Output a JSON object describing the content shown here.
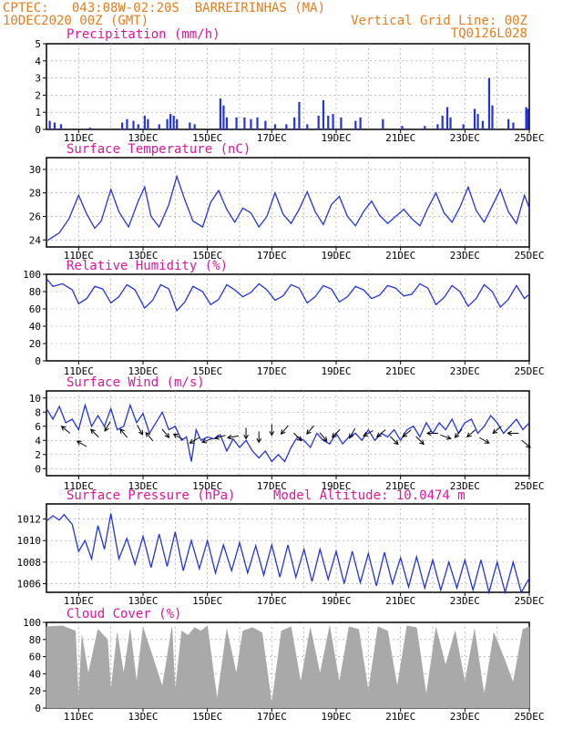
{
  "header": {
    "line1_left": "CPTEC:   043:08W-02:20S  BARREIRINHAS (MA)",
    "line2_left": "10DEC2020 00Z (GMT)",
    "line1_right": "Vertical Grid Line: 00Z",
    "line2_right": "TQ0126L028"
  },
  "colors": {
    "header": "#e87d1e",
    "title": "#e0159a",
    "series": "#2233e6",
    "cloud": "#a9a9a9",
    "grid": "#999999"
  },
  "x_axis": {
    "start": "10DEC2020 00Z",
    "end": "25DEC2020 00Z",
    "ticks": [
      "11DEC",
      "13DEC",
      "15DEC",
      "17DEC",
      "19DEC",
      "21DEC",
      "23DEC",
      "25DEC"
    ]
  },
  "chart_data": [
    {
      "id": "precip",
      "type": "bar",
      "title": "Precipitation (mm/h)",
      "ylim": [
        0,
        5
      ],
      "yticks": [
        "0",
        "1",
        "2",
        "3",
        "4",
        "5"
      ],
      "series_desc": "hourly bars",
      "events": [
        {
          "day": 10.1,
          "value": 0.5
        },
        {
          "day": 10.25,
          "value": 0.4
        },
        {
          "day": 10.45,
          "value": 0.3
        },
        {
          "day": 11.35,
          "value": 0.1
        },
        {
          "day": 12.35,
          "value": 0.4
        },
        {
          "day": 12.5,
          "value": 0.6
        },
        {
          "day": 12.7,
          "value": 0.5
        },
        {
          "day": 12.85,
          "value": 0.3
        },
        {
          "day": 13.05,
          "value": 0.8
        },
        {
          "day": 13.15,
          "value": 0.6
        },
        {
          "day": 13.5,
          "value": 0.3
        },
        {
          "day": 13.75,
          "value": 0.6
        },
        {
          "day": 13.85,
          "value": 0.9
        },
        {
          "day": 13.95,
          "value": 0.8
        },
        {
          "day": 14.05,
          "value": 0.6
        },
        {
          "day": 14.45,
          "value": 0.4
        },
        {
          "day": 14.6,
          "value": 0.3
        },
        {
          "day": 15.4,
          "value": 1.8
        },
        {
          "day": 15.5,
          "value": 1.4
        },
        {
          "day": 15.6,
          "value": 0.7
        },
        {
          "day": 15.9,
          "value": 0.7
        },
        {
          "day": 16.15,
          "value": 0.7
        },
        {
          "day": 16.35,
          "value": 0.6
        },
        {
          "day": 16.55,
          "value": 0.7
        },
        {
          "day": 16.8,
          "value": 0.5
        },
        {
          "day": 17.1,
          "value": 0.3
        },
        {
          "day": 17.45,
          "value": 0.3
        },
        {
          "day": 17.7,
          "value": 0.7
        },
        {
          "day": 17.85,
          "value": 1.6
        },
        {
          "day": 18.1,
          "value": 0.3
        },
        {
          "day": 18.45,
          "value": 0.8
        },
        {
          "day": 18.6,
          "value": 1.7
        },
        {
          "day": 18.75,
          "value": 0.8
        },
        {
          "day": 18.9,
          "value": 0.9
        },
        {
          "day": 19.15,
          "value": 0.7
        },
        {
          "day": 19.6,
          "value": 0.5
        },
        {
          "day": 19.75,
          "value": 0.7
        },
        {
          "day": 20.45,
          "value": 0.6
        },
        {
          "day": 21.05,
          "value": 0.2
        },
        {
          "day": 21.75,
          "value": 0.2
        },
        {
          "day": 22.15,
          "value": 0.3
        },
        {
          "day": 22.3,
          "value": 0.8
        },
        {
          "day": 22.45,
          "value": 1.3
        },
        {
          "day": 22.55,
          "value": 0.7
        },
        {
          "day": 22.95,
          "value": 0.3
        },
        {
          "day": 23.3,
          "value": 1.2
        },
        {
          "day": 23.4,
          "value": 0.9
        },
        {
          "day": 23.55,
          "value": 0.5
        },
        {
          "day": 23.75,
          "value": 3.0
        },
        {
          "day": 23.85,
          "value": 1.4
        },
        {
          "day": 24.35,
          "value": 0.6
        },
        {
          "day": 24.5,
          "value": 0.4
        },
        {
          "day": 24.9,
          "value": 1.3
        },
        {
          "day": 24.95,
          "value": 1.2
        }
      ]
    },
    {
      "id": "temp",
      "type": "line",
      "title": "Surface Temperature (nC)",
      "ylim": [
        23.4,
        31
      ],
      "yticks": [
        "24",
        "26",
        "28",
        "30"
      ],
      "ytick_values": [
        24,
        26,
        28,
        30
      ],
      "x_days": [
        10,
        10.4,
        10.7,
        11,
        11.25,
        11.5,
        11.7,
        12.0,
        12.25,
        12.55,
        12.85,
        13.05,
        13.25,
        13.5,
        13.8,
        14.05,
        14.3,
        14.55,
        14.85,
        15.1,
        15.35,
        15.6,
        15.85,
        16.1,
        16.35,
        16.6,
        16.85,
        17.1,
        17.35,
        17.6,
        17.85,
        18.1,
        18.35,
        18.6,
        18.85,
        19.1,
        19.35,
        19.6,
        19.85,
        20.1,
        20.35,
        20.6,
        20.85,
        21.1,
        21.35,
        21.6,
        21.85,
        22.1,
        22.35,
        22.6,
        22.85,
        23.1,
        23.35,
        23.6,
        23.85,
        24.1,
        24.35,
        24.6,
        24.85,
        25
      ],
      "values": [
        23.9,
        24.6,
        25.8,
        27.8,
        26.2,
        25.0,
        25.6,
        28.3,
        26.4,
        25.1,
        27.3,
        28.5,
        26.0,
        25.1,
        27.0,
        29.4,
        27.4,
        25.6,
        25.1,
        27.2,
        28.2,
        26.6,
        25.5,
        26.7,
        26.3,
        25.1,
        26.0,
        28.0,
        26.2,
        25.4,
        26.6,
        28.1,
        26.4,
        25.3,
        27.0,
        27.7,
        26.0,
        25.2,
        26.4,
        27.3,
        26.1,
        25.4,
        26.0,
        26.6,
        25.8,
        25.2,
        26.7,
        28.0,
        26.3,
        25.5,
        26.8,
        28.5,
        26.5,
        25.5,
        26.9,
        28.3,
        26.4,
        25.4,
        27.8,
        26.7
      ]
    },
    {
      "id": "rh",
      "type": "line",
      "title": "Relative Humidity (%)",
      "ylim": [
        0,
        100
      ],
      "yticks": [
        "0",
        "20",
        "40",
        "60",
        "80",
        "100"
      ],
      "ytick_values": [
        0,
        20,
        40,
        60,
        80,
        100
      ],
      "x_days": [
        10,
        10.2,
        10.5,
        10.8,
        11.0,
        11.25,
        11.5,
        11.75,
        12.0,
        12.25,
        12.5,
        12.75,
        13.05,
        13.3,
        13.55,
        13.8,
        14.05,
        14.3,
        14.55,
        14.85,
        15.1,
        15.35,
        15.6,
        15.85,
        16.1,
        16.35,
        16.6,
        16.85,
        17.1,
        17.35,
        17.6,
        17.85,
        18.1,
        18.35,
        18.6,
        18.85,
        19.1,
        19.35,
        19.6,
        19.85,
        20.1,
        20.35,
        20.6,
        20.85,
        21.1,
        21.35,
        21.6,
        21.85,
        22.1,
        22.35,
        22.6,
        22.85,
        23.1,
        23.35,
        23.6,
        23.85,
        24.1,
        24.35,
        24.6,
        24.85,
        25
      ],
      "values": [
        95,
        86,
        89,
        82,
        66,
        72,
        86,
        83,
        67,
        74,
        88,
        82,
        61,
        70,
        88,
        83,
        58,
        68,
        86,
        80,
        65,
        71,
        88,
        82,
        74,
        79,
        89,
        82,
        70,
        75,
        88,
        84,
        67,
        74,
        87,
        83,
        68,
        74,
        86,
        82,
        72,
        76,
        87,
        84,
        75,
        77,
        89,
        84,
        65,
        73,
        87,
        80,
        63,
        72,
        88,
        80,
        62,
        71,
        87,
        72,
        77
      ]
    },
    {
      "id": "wind",
      "type": "line",
      "title": "Surface Wind (m/s)",
      "ylim": [
        -1,
        11
      ],
      "yticks": [
        "0",
        "2",
        "4",
        "6",
        "8",
        "10"
      ],
      "ytick_values": [
        0,
        2,
        4,
        6,
        8,
        10
      ],
      "x_days": [
        10,
        10.2,
        10.4,
        10.6,
        10.8,
        11.0,
        11.2,
        11.4,
        11.6,
        11.8,
        12.0,
        12.2,
        12.4,
        12.6,
        12.8,
        13.0,
        13.2,
        13.4,
        13.6,
        13.8,
        14.0,
        14.2,
        14.35,
        14.5,
        14.65,
        14.8,
        15.0,
        15.2,
        15.4,
        15.6,
        15.8,
        16.0,
        16.2,
        16.4,
        16.6,
        16.8,
        17.0,
        17.2,
        17.4,
        17.6,
        17.8,
        18.0,
        18.2,
        18.4,
        18.6,
        18.8,
        19.0,
        19.2,
        19.4,
        19.6,
        19.8,
        20.0,
        20.2,
        20.4,
        20.6,
        20.8,
        21.0,
        21.2,
        21.4,
        21.6,
        21.8,
        22.0,
        22.2,
        22.4,
        22.6,
        22.8,
        23.0,
        23.2,
        23.4,
        23.6,
        23.8,
        24.0,
        24.2,
        24.4,
        24.6,
        24.8,
        25.0
      ],
      "values": [
        8.5,
        7.0,
        8.8,
        6.5,
        7.0,
        5.5,
        9.0,
        6.0,
        7.5,
        6.0,
        8.5,
        5.5,
        6.0,
        9.0,
        6.5,
        7.8,
        5.0,
        6.5,
        8.0,
        5.5,
        6.0,
        4.0,
        4.5,
        1.0,
        5.5,
        4.0,
        4.5,
        4.2,
        4.8,
        2.5,
        4.2,
        3.0,
        4.0,
        2.5,
        1.5,
        2.5,
        1.0,
        2.0,
        1.0,
        3.0,
        4.5,
        4.0,
        3.0,
        5.0,
        4.0,
        3.5,
        5.0,
        3.5,
        4.5,
        5.0,
        4.0,
        5.5,
        4.0,
        5.0,
        4.5,
        5.5,
        4.0,
        5.5,
        6.0,
        4.5,
        6.5,
        5.0,
        6.5,
        5.5,
        7.0,
        5.0,
        6.5,
        7.0,
        5.0,
        6.0,
        7.5,
        6.5,
        5.0,
        6.0,
        7.0,
        5.5,
        6.5
      ],
      "arrows_desc": "wind direction arrows",
      "arrows": [
        {
          "day": 10.6,
          "speed": 5.5,
          "dir": 220
        },
        {
          "day": 11.1,
          "speed": 3.5,
          "dir": 210
        },
        {
          "day": 11.5,
          "speed": 5.0,
          "dir": 225
        },
        {
          "day": 11.9,
          "speed": 6.0,
          "dir": 120
        },
        {
          "day": 12.4,
          "speed": 5.0,
          "dir": 230
        },
        {
          "day": 12.9,
          "speed": 5.5,
          "dir": 60
        },
        {
          "day": 13.2,
          "speed": 4.5,
          "dir": 230
        },
        {
          "day": 13.7,
          "speed": 5.0,
          "dir": 50
        },
        {
          "day": 14.1,
          "speed": 4.5,
          "dir": 210
        },
        {
          "day": 14.6,
          "speed": 4.0,
          "dir": 150
        },
        {
          "day": 15.0,
          "speed": 4.0,
          "dir": 160
        },
        {
          "day": 15.4,
          "speed": 4.5,
          "dir": 165
        },
        {
          "day": 15.8,
          "speed": 4.5,
          "dir": 170
        },
        {
          "day": 16.2,
          "speed": 5.0,
          "dir": 90
        },
        {
          "day": 16.6,
          "speed": 4.5,
          "dir": 90
        },
        {
          "day": 17.0,
          "speed": 5.5,
          "dir": 90
        },
        {
          "day": 17.4,
          "speed": 5.5,
          "dir": 130
        },
        {
          "day": 17.8,
          "speed": 4.5,
          "dir": 45
        },
        {
          "day": 18.2,
          "speed": 5.5,
          "dir": 130
        },
        {
          "day": 18.6,
          "speed": 4.5,
          "dir": 50
        },
        {
          "day": 19.0,
          "speed": 5.0,
          "dir": 135
        },
        {
          "day": 19.5,
          "speed": 5.0,
          "dir": 120
        },
        {
          "day": 20.0,
          "speed": 5.0,
          "dir": 150
        },
        {
          "day": 20.4,
          "speed": 5.0,
          "dir": 140
        },
        {
          "day": 20.8,
          "speed": 4.0,
          "dir": 45
        },
        {
          "day": 21.2,
          "speed": 5.0,
          "dir": 140
        },
        {
          "day": 21.6,
          "speed": 4.0,
          "dir": 45
        },
        {
          "day": 22.0,
          "speed": 5.0,
          "dir": 180
        },
        {
          "day": 22.4,
          "speed": 4.5,
          "dir": 20
        },
        {
          "day": 22.8,
          "speed": 5.0,
          "dir": 130
        },
        {
          "day": 23.2,
          "speed": 5.0,
          "dir": 140
        },
        {
          "day": 23.6,
          "speed": 4.0,
          "dir": 30
        },
        {
          "day": 24.0,
          "speed": 5.5,
          "dir": 140
        },
        {
          "day": 24.5,
          "speed": 5.0,
          "dir": 180
        },
        {
          "day": 24.9,
          "speed": 3.5,
          "dir": 40
        }
      ]
    },
    {
      "id": "pres",
      "type": "line",
      "title": "Surface Pressure (hPa)",
      "annotation": "Model Altitude: 10.0474 m",
      "ylim": [
        1005.2,
        1013.4
      ],
      "yticks": [
        "1006",
        "1008",
        "1010",
        "1012"
      ],
      "ytick_values": [
        1006,
        1008,
        1010,
        1012
      ],
      "x_days": [
        10,
        10.2,
        10.4,
        10.55,
        10.8,
        11.0,
        11.2,
        11.4,
        11.6,
        11.8,
        12.0,
        12.25,
        12.5,
        12.75,
        13.0,
        13.25,
        13.5,
        13.75,
        14.0,
        14.25,
        14.5,
        14.75,
        15.0,
        15.25,
        15.5,
        15.75,
        16.0,
        16.25,
        16.5,
        16.75,
        17.0,
        17.25,
        17.5,
        17.75,
        18.0,
        18.25,
        18.5,
        18.75,
        19.0,
        19.25,
        19.5,
        19.75,
        20.0,
        20.25,
        20.5,
        20.75,
        21.0,
        21.25,
        21.5,
        21.75,
        22.0,
        22.25,
        22.5,
        22.75,
        23.0,
        23.25,
        23.5,
        23.75,
        24.0,
        24.25,
        24.5,
        24.75,
        25.0
      ],
      "values": [
        1011.8,
        1012.3,
        1011.9,
        1012.4,
        1011.5,
        1009.0,
        1010.0,
        1008.3,
        1011.4,
        1009.2,
        1012.5,
        1008.3,
        1010.2,
        1007.8,
        1010.4,
        1007.5,
        1010.6,
        1007.6,
        1010.8,
        1007.2,
        1010.0,
        1007.4,
        1010.0,
        1007.0,
        1009.6,
        1007.2,
        1009.8,
        1007.0,
        1009.5,
        1006.8,
        1009.6,
        1006.6,
        1009.6,
        1006.6,
        1009.2,
        1006.2,
        1009.2,
        1006.4,
        1009.0,
        1006.0,
        1009.0,
        1006.1,
        1008.8,
        1005.8,
        1008.9,
        1006.0,
        1008.4,
        1005.7,
        1008.5,
        1005.6,
        1008.2,
        1005.4,
        1008.0,
        1005.6,
        1008.2,
        1005.4,
        1008.2,
        1005.0,
        1008.0,
        1005.2,
        1008.0,
        1005.0,
        1006.5
      ]
    },
    {
      "id": "cloud",
      "type": "area",
      "title": "Cloud Cover (%)",
      "ylim": [
        0,
        100
      ],
      "yticks": [
        "0",
        "20",
        "40",
        "60",
        "80",
        "100"
      ],
      "ytick_values": [
        0,
        20,
        40,
        60,
        80,
        100
      ],
      "x_days": [
        10,
        10.5,
        10.9,
        11.0,
        11.1,
        11.3,
        11.6,
        11.9,
        12.0,
        12.2,
        12.4,
        12.6,
        12.8,
        13.0,
        13.3,
        13.6,
        13.9,
        14.0,
        14.2,
        14.4,
        14.6,
        14.8,
        15.0,
        15.3,
        15.6,
        15.9,
        16.1,
        16.4,
        16.7,
        17.0,
        17.3,
        17.6,
        17.9,
        18.2,
        18.5,
        18.8,
        19.1,
        19.4,
        19.7,
        20.0,
        20.3,
        20.6,
        20.9,
        21.2,
        21.5,
        21.8,
        22.1,
        22.4,
        22.7,
        23.0,
        23.3,
        23.6,
        23.9,
        24.2,
        24.5,
        24.8,
        25.0
      ],
      "values": [
        95,
        96,
        90,
        10,
        85,
        40,
        92,
        80,
        20,
        88,
        40,
        92,
        30,
        94,
        60,
        25,
        95,
        20,
        90,
        85,
        94,
        90,
        96,
        10,
        92,
        40,
        90,
        94,
        88,
        5,
        90,
        95,
        30,
        94,
        40,
        96,
        30,
        95,
        92,
        20,
        95,
        90,
        25,
        96,
        94,
        15,
        94,
        50,
        90,
        30,
        92,
        15,
        88,
        60,
        30,
        92,
        95
      ]
    }
  ]
}
